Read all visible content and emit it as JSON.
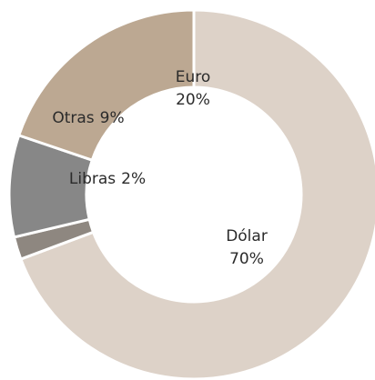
{
  "chart_data": {
    "type": "donut",
    "categories": [
      "Dólar",
      "Libras",
      "Otras",
      "Euro"
    ],
    "values": [
      70,
      2,
      9,
      20
    ],
    "value_labels": [
      "70%",
      "2%",
      "9%",
      "20%"
    ],
    "colors": [
      "#ddd2c8",
      "#8e8780",
      "#878787",
      "#bca892"
    ]
  }
}
